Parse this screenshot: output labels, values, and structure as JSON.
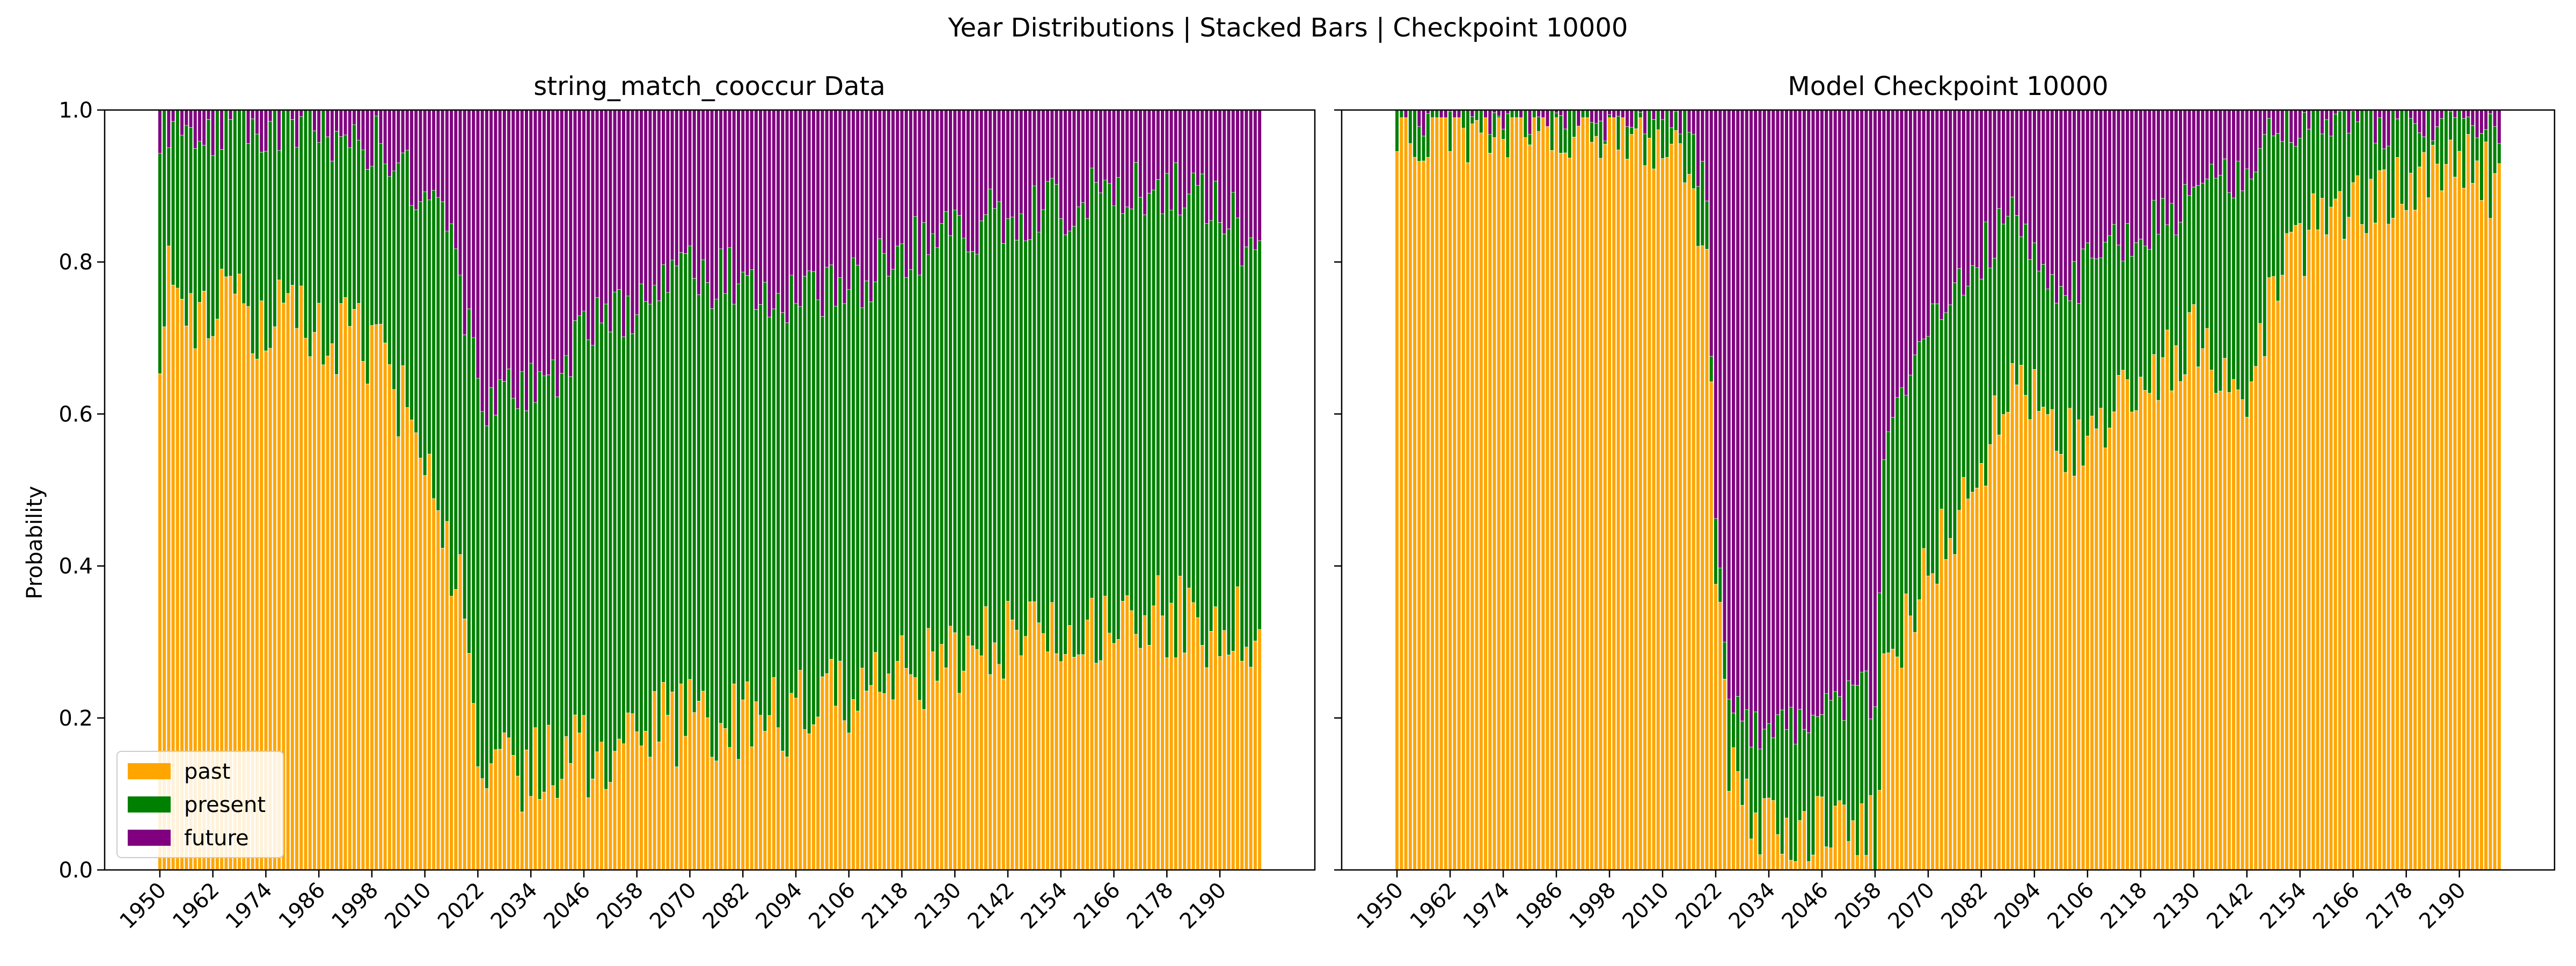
{
  "figure": {
    "title": "Year Distributions | Stacked Bars | Checkpoint 10000",
    "ylabel": "Probability"
  },
  "legend": {
    "location": "lower-left",
    "items": [
      {
        "label": "past",
        "color": "#FFA500"
      },
      {
        "label": "present",
        "color": "#008000"
      },
      {
        "label": "future",
        "color": "#800080"
      }
    ]
  },
  "chart_data": [
    {
      "type": "bar",
      "stacked": true,
      "title": "string_match_cooccur Data",
      "ylabel": "Probability",
      "ylim": [
        0,
        1
      ],
      "yticks": [
        "0.0",
        "0.2",
        "0.4",
        "0.6",
        "0.8",
        "1.0"
      ],
      "xticks": [
        "1950",
        "1962",
        "1974",
        "1986",
        "1998",
        "2010",
        "2022",
        "2034",
        "2046",
        "2058",
        "2070",
        "2082",
        "2094",
        "2106",
        "2118",
        "2130",
        "2142",
        "2154",
        "2166",
        "2178",
        "2190"
      ],
      "x_start": 1950,
      "x_end": 2199,
      "approximate_profile": {
        "x": [
          1950,
          1951,
          1955,
          1965,
          1975,
          1985,
          1995,
          2000,
          2005,
          2010,
          2015,
          2020,
          2022,
          2030,
          2040,
          2050,
          2060,
          2070,
          2080,
          2090,
          2100,
          2110,
          2120,
          2130,
          2140,
          2150,
          2160,
          2170,
          2180,
          2190,
          2199
        ],
        "past": [
          0.7,
          0.77,
          0.75,
          0.73,
          0.72,
          0.71,
          0.69,
          0.66,
          0.62,
          0.55,
          0.45,
          0.3,
          0.1,
          0.13,
          0.14,
          0.16,
          0.18,
          0.2,
          0.2,
          0.2,
          0.22,
          0.24,
          0.26,
          0.28,
          0.3,
          0.32,
          0.33,
          0.33,
          0.33,
          0.3,
          0.33
        ],
        "present": [
          0.98,
          0.98,
          0.98,
          0.98,
          0.98,
          0.97,
          0.97,
          0.95,
          0.92,
          0.89,
          0.85,
          0.72,
          0.62,
          0.62,
          0.66,
          0.72,
          0.74,
          0.78,
          0.78,
          0.76,
          0.76,
          0.78,
          0.82,
          0.84,
          0.86,
          0.87,
          0.88,
          0.9,
          0.9,
          0.88,
          0.8
        ]
      }
    },
    {
      "type": "bar",
      "stacked": true,
      "title": "Model Checkpoint 10000",
      "ylim": [
        0,
        1
      ],
      "yticks": [
        "0.0",
        "0.2",
        "0.4",
        "0.6",
        "0.8",
        "1.0"
      ],
      "xticks": [
        "1950",
        "1962",
        "1974",
        "1986",
        "1998",
        "2010",
        "2022",
        "2034",
        "2046",
        "2058",
        "2070",
        "2082",
        "2094",
        "2106",
        "2118",
        "2130",
        "2142",
        "2154",
        "2166",
        "2178",
        "2190"
      ],
      "x_start": 1950,
      "x_end": 2199,
      "approximate_profile": {
        "x": [
          1950,
          1960,
          1980,
          2000,
          2010,
          2015,
          2020,
          2022,
          2025,
          2030,
          2040,
          2050,
          2058,
          2060,
          2065,
          2070,
          2080,
          2090,
          2100,
          2110,
          2120,
          2130,
          2140,
          2150,
          2160,
          2170,
          2180,
          2190,
          2199
        ],
        "past": [
          0.98,
          0.98,
          0.98,
          0.98,
          0.97,
          0.93,
          0.8,
          0.4,
          0.15,
          0.06,
          0.05,
          0.06,
          0.05,
          0.25,
          0.32,
          0.4,
          0.5,
          0.65,
          0.55,
          0.6,
          0.65,
          0.7,
          0.6,
          0.8,
          0.86,
          0.88,
          0.9,
          0.93,
          0.9
        ],
        "present": [
          0.995,
          0.995,
          0.99,
          0.99,
          0.99,
          0.98,
          0.9,
          0.45,
          0.25,
          0.18,
          0.2,
          0.22,
          0.23,
          0.55,
          0.65,
          0.72,
          0.8,
          0.86,
          0.75,
          0.82,
          0.85,
          0.88,
          0.92,
          0.98,
          0.98,
          0.98,
          0.99,
          0.99,
          0.96
        ]
      }
    }
  ]
}
